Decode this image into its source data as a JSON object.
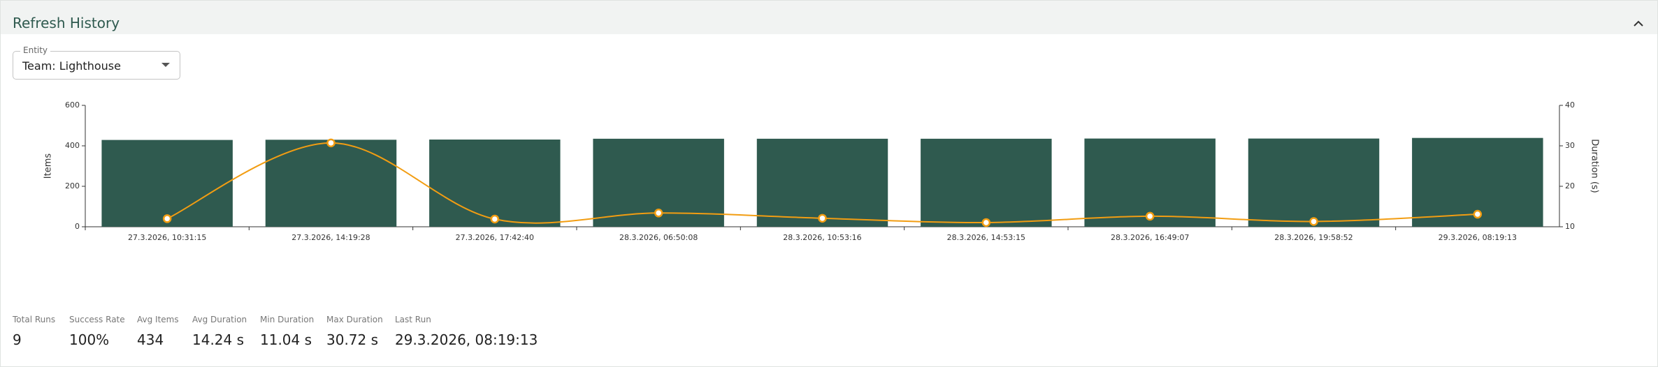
{
  "header": {
    "title": "Refresh History"
  },
  "entity": {
    "label": "Entity",
    "value": "Team: Lighthouse"
  },
  "chart_data": {
    "type": "bar-line",
    "categories": [
      "27.3.2026, 10:31:15",
      "27.3.2026, 14:19:28",
      "27.3.2026, 17:42:40",
      "28.3.2026, 06:50:08",
      "28.3.2026, 10:53:16",
      "28.3.2026, 14:53:15",
      "28.3.2026, 16:49:07",
      "28.3.2026, 19:58:52",
      "29.3.2026, 08:19:13"
    ],
    "series": [
      {
        "type": "bar",
        "color": "#2f5a4f",
        "values": [
          429,
          430,
          431,
          435,
          435,
          435,
          436,
          436,
          439
        ]
      },
      {
        "type": "line",
        "axis": "y2",
        "color": "#f29d12",
        "values": [
          12.0,
          30.72,
          11.9,
          13.4,
          12.1,
          11.04,
          12.6,
          11.3,
          13.1
        ]
      }
    ],
    "y_label": "Items",
    "y2_label": "Duration (s)",
    "ylim": [
      0,
      600
    ],
    "yticks": [
      0,
      200,
      400,
      600
    ],
    "y2lim": [
      10,
      40
    ],
    "y2ticks": [
      10,
      20,
      30,
      40
    ]
  },
  "stats": [
    {
      "label": "Total Runs",
      "value": "9"
    },
    {
      "label": "Success Rate",
      "value": "100%"
    },
    {
      "label": "Avg Items",
      "value": "434"
    },
    {
      "label": "Avg Duration",
      "value": "14.24 s"
    },
    {
      "label": "Min Duration",
      "value": "11.04 s"
    },
    {
      "label": "Max Duration",
      "value": "30.72 s"
    },
    {
      "label": "Last Run",
      "value": "29.3.2026, 08:19:13"
    }
  ]
}
